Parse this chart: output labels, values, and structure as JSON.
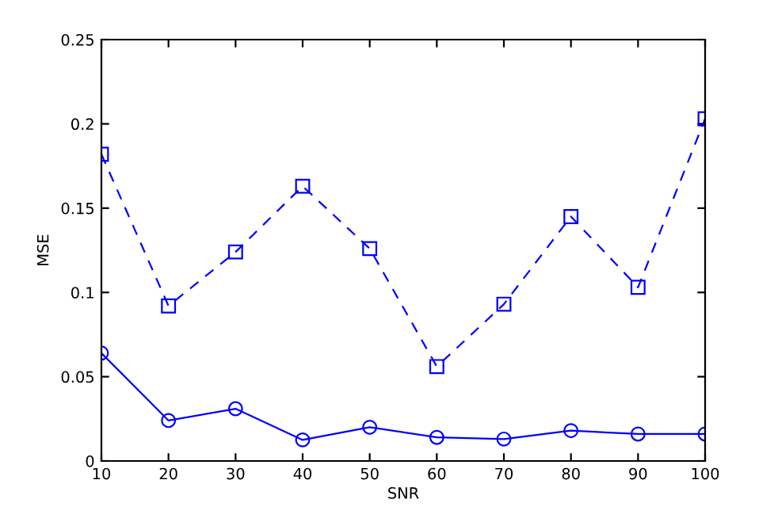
{
  "chart_data": {
    "type": "line",
    "xlabel": "SNR",
    "ylabel": "MSE",
    "x": [
      10,
      20,
      30,
      40,
      50,
      60,
      70,
      80,
      90,
      100
    ],
    "series": [
      {
        "color": "#0000ff",
        "marker": "circle",
        "line_style": "solid",
        "values": [
          0.064,
          0.024,
          0.031,
          0.0125,
          0.02,
          0.014,
          0.013,
          0.018,
          0.016,
          0.016
        ]
      },
      {
        "color": "#0000ff",
        "marker": "square",
        "line_style": "dashed",
        "values": [
          0.182,
          0.092,
          0.124,
          0.163,
          0.126,
          0.056,
          0.093,
          0.145,
          0.103,
          0.203
        ]
      }
    ],
    "xlim": [
      10,
      100
    ],
    "xticks": [
      10,
      20,
      30,
      40,
      50,
      60,
      70,
      80,
      90,
      100
    ],
    "ylim": [
      0,
      0.25
    ],
    "yticks": [
      0,
      0.05,
      0.1,
      0.15,
      0.2,
      0.25
    ],
    "grid": false,
    "legend": false
  }
}
